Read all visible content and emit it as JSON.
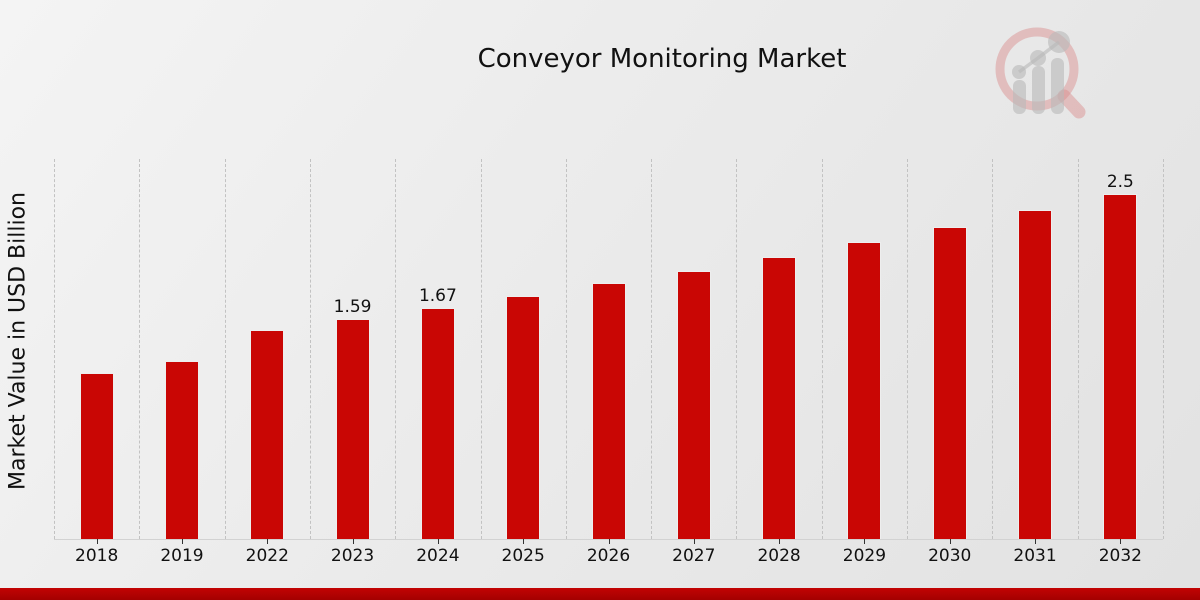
{
  "chart_data": {
    "type": "bar",
    "title": "Conveyor Monitoring Market",
    "xlabel": "",
    "ylabel": "Market Value in USD Billion",
    "categories": [
      "2018",
      "2019",
      "2022",
      "2023",
      "2024",
      "2025",
      "2026",
      "2027",
      "2028",
      "2029",
      "2030",
      "2031",
      "2032"
    ],
    "values": [
      1.2,
      1.29,
      1.51,
      1.59,
      1.67,
      1.76,
      1.85,
      1.94,
      2.04,
      2.15,
      2.26,
      2.38,
      2.5
    ],
    "point_labels": [
      "",
      "",
      "",
      "1.59",
      "1.67",
      "",
      "",
      "",
      "",
      "",
      "",
      "",
      "2.5"
    ],
    "unit": "USD Billion",
    "ylim": [
      0,
      2.75
    ],
    "grid": "vertical-dashed",
    "legend": "none",
    "bar_color": "#c90604"
  },
  "icons": {
    "watermark": "magnifier-growth-chart-logo"
  },
  "colors": {
    "bar": "#c90604",
    "bar_edge": "#eeeeee",
    "accent_strip_top": "#c20303",
    "accent_strip_bottom": "#a30000",
    "background": "#e9e9e9",
    "gridline": "#c2c2c2",
    "text": "#111111",
    "logo_ring": "#d98a8a",
    "logo_bars": "#b9b9b9"
  }
}
